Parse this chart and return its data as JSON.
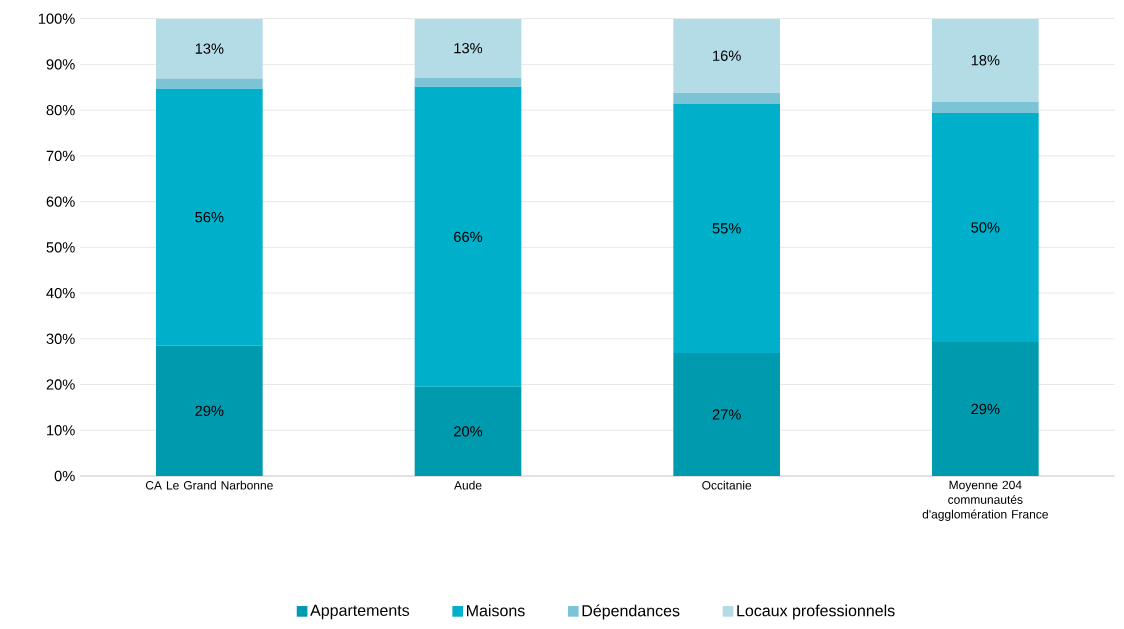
{
  "chart_data": {
    "type": "bar",
    "stacked": true,
    "categories": [
      "CA Le Grand Narbonne",
      "Aude",
      "Occitanie",
      "Moyenne 204 communautés d'agglomération France"
    ],
    "series": [
      {
        "name": "Appartements",
        "color": "#009aaf",
        "values": [
          28.5,
          19.5,
          26.9,
          29.3
        ],
        "value_labels": [
          "29%",
          "20%",
          "27%",
          "29%"
        ]
      },
      {
        "name": "Maisons",
        "color": "#00b0cb",
        "values": [
          56.2,
          65.6,
          54.5,
          50.1
        ],
        "value_labels": [
          "56%",
          "66%",
          "55%",
          "50%"
        ]
      },
      {
        "name": "Dépendances",
        "color": "#7cc3d6",
        "values": [
          2.2,
          2.0,
          2.4,
          2.4
        ]
      },
      {
        "name": "Locaux professionnels",
        "color": "#b3dce6",
        "values": [
          13.1,
          12.9,
          16.2,
          18.2
        ],
        "value_labels": [
          "13%",
          "13%",
          "16%",
          "18%"
        ]
      }
    ],
    "ylim": [
      0,
      100
    ],
    "yticks": [
      {
        "value": 0,
        "label": "0%"
      },
      {
        "value": 10,
        "label": "10%"
      },
      {
        "value": 20,
        "label": "20%"
      },
      {
        "value": 30,
        "label": "30%"
      },
      {
        "value": 40,
        "label": "40%"
      },
      {
        "value": 50,
        "label": "50%"
      },
      {
        "value": 60,
        "label": "60%"
      },
      {
        "value": 70,
        "label": "70%"
      },
      {
        "value": 80,
        "label": "80%"
      },
      {
        "value": 90,
        "label": "90%"
      },
      {
        "value": 100,
        "label": "100%"
      }
    ],
    "grid": "y",
    "legend": "bottom"
  }
}
